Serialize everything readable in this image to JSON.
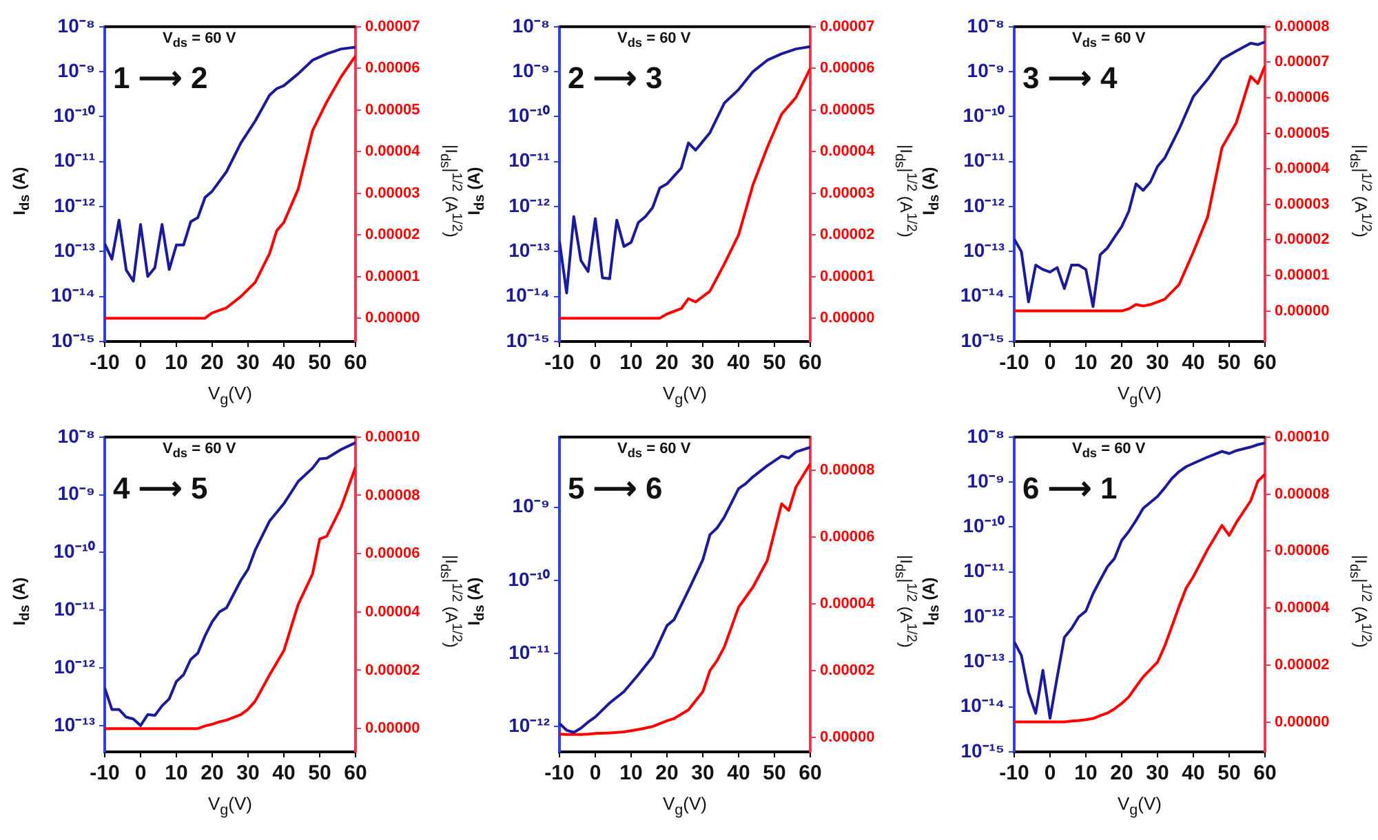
{
  "chart_data": [
    {
      "type": "line",
      "xlabel": "V$_{g}$(V)",
      "ylabel": "I$_{ds}$ (A)",
      "y2label": "|I$_{ds}$|$^{1/2}$ (A$^{1/2}$)",
      "annotations": [
        "V$_{ds}$ = 60 V",
        "1 ⟶ 2"
      ],
      "log": "y",
      "marker": "none",
      "line_style": "solid",
      "x": [
        -10,
        -8,
        -6,
        -4,
        -2,
        0,
        2,
        4,
        6,
        8,
        10,
        12,
        14,
        16,
        18,
        20,
        24,
        28,
        32,
        36,
        38,
        40,
        44,
        48,
        52,
        56,
        60
      ],
      "series": [
        {
          "color": "#1a1a9c",
          "values": [
            1.5e-13,
            6.8e-14,
            5e-13,
            3.9e-14,
            2.2e-14,
            4e-13,
            2.8e-14,
            4.4e-14,
            4e-13,
            4e-14,
            1.4e-13,
            1.4e-13,
            4.6e-13,
            5.7e-13,
            1.6e-12,
            2.2e-12,
            6e-12,
            2.6e-11,
            8e-11,
            3e-10,
            4.2e-10,
            4.9e-10,
            9e-10,
            1.8e-09,
            2.5e-09,
            3.2e-09,
            3.5e-09
          ]
        },
        {
          "color": "#ff0000",
          "axis": "y2",
          "values": [
            0,
            0,
            0,
            0,
            0,
            0,
            0,
            0,
            0,
            0,
            0,
            0,
            0,
            0,
            0,
            1.3e-06,
            2.5e-06,
            5.2e-06,
            8.6e-06,
            1.55e-05,
            2.1e-05,
            2.3e-05,
            3.1e-05,
            4.5e-05,
            5.2e-05,
            5.8e-05,
            6.3e-05
          ]
        }
      ],
      "xlim": [
        -10,
        60
      ],
      "xticks": [
        -10,
        0,
        10,
        20,
        30,
        40,
        50,
        60
      ],
      "ylim": [
        1e-15,
        1e-08
      ],
      "yticks": [
        {
          "value": 1e-15,
          "label": "10⁻¹⁵"
        },
        {
          "value": 1e-14,
          "label": "10⁻¹⁴"
        },
        {
          "value": 1e-13,
          "label": "10⁻¹³"
        },
        {
          "value": 1e-12,
          "label": "10⁻¹²"
        },
        {
          "value": 1e-11,
          "label": "10⁻¹¹"
        },
        {
          "value": 1e-10,
          "label": "10⁻¹⁰"
        },
        {
          "value": 1e-09,
          "label": "10⁻⁹"
        },
        {
          "value": 1e-08,
          "label": "10⁻⁸"
        }
      ],
      "y2lim": [
        -5.6e-06,
        7e-05
      ],
      "y2ticks": [
        {
          "value": 0,
          "label": "0.00000"
        },
        {
          "value": 1e-05,
          "label": "0.00001"
        },
        {
          "value": 2e-05,
          "label": "0.00002"
        },
        {
          "value": 3e-05,
          "label": "0.00003"
        },
        {
          "value": 4e-05,
          "label": "0.00004"
        },
        {
          "value": 5e-05,
          "label": "0.00005"
        },
        {
          "value": 6e-05,
          "label": "0.00006"
        },
        {
          "value": 7e-05,
          "label": "0.00007"
        }
      ]
    },
    {
      "type": "line",
      "xlabel": "V$_{g}$(V)",
      "ylabel": "I$_{ds}$ (A)",
      "y2label": "|I$_{ds}$|$^{1/2}$ (A$^{1/2}$)",
      "annotations": [
        "V$_{ds}$ = 60 V",
        "2 ⟶ 3"
      ],
      "log": "y",
      "marker": "none",
      "line_style": "solid",
      "x": [
        -10,
        -8,
        -6,
        -4,
        -2,
        0,
        2,
        4,
        6,
        8,
        10,
        12,
        14,
        16,
        18,
        20,
        24,
        26,
        28,
        32,
        36,
        40,
        44,
        48,
        52,
        56,
        60
      ],
      "series": [
        {
          "color": "#1a1a9c",
          "values": [
            1.7e-13,
            1.2e-14,
            6e-13,
            6.3e-14,
            3.6e-14,
            5.4e-13,
            2.6e-14,
            2.5e-14,
            5e-13,
            1.3e-13,
            1.6e-13,
            4.4e-13,
            6e-13,
            9.5e-13,
            2.6e-12,
            3.2e-12,
            7.2e-12,
            2.6e-11,
            1.8e-11,
            4.4e-11,
            2e-10,
            4e-10,
            1e-09,
            1.8e-09,
            2.5e-09,
            3.2e-09,
            3.6e-09
          ]
        },
        {
          "color": "#ff0000",
          "axis": "y2",
          "values": [
            0,
            0,
            0,
            0,
            0,
            0,
            0,
            0,
            0,
            0,
            0,
            0,
            0,
            0,
            0,
            1e-06,
            2.3e-06,
            4.7e-06,
            3.9e-06,
            6.5e-06,
            1.3e-05,
            2e-05,
            3.2e-05,
            4.1e-05,
            4.9e-05,
            5.3e-05,
            6e-05
          ]
        }
      ],
      "xlim": [
        -10,
        60
      ],
      "xticks": [
        -10,
        0,
        10,
        20,
        30,
        40,
        50,
        60
      ],
      "ylim": [
        1e-15,
        1e-08
      ],
      "yticks": [
        {
          "value": 1e-15,
          "label": "10⁻¹⁵"
        },
        {
          "value": 1e-14,
          "label": "10⁻¹⁴"
        },
        {
          "value": 1e-13,
          "label": "10⁻¹³"
        },
        {
          "value": 1e-12,
          "label": "10⁻¹²"
        },
        {
          "value": 1e-11,
          "label": "10⁻¹¹"
        },
        {
          "value": 1e-10,
          "label": "10⁻¹⁰"
        },
        {
          "value": 1e-09,
          "label": "10⁻⁹"
        },
        {
          "value": 1e-08,
          "label": "10⁻⁸"
        }
      ],
      "y2lim": [
        -5.6e-06,
        7e-05
      ],
      "y2ticks": [
        {
          "value": 0,
          "label": "0.00000"
        },
        {
          "value": 1e-05,
          "label": "0.00001"
        },
        {
          "value": 2e-05,
          "label": "0.00002"
        },
        {
          "value": 3e-05,
          "label": "0.00003"
        },
        {
          "value": 4e-05,
          "label": "0.00004"
        },
        {
          "value": 5e-05,
          "label": "0.00005"
        },
        {
          "value": 6e-05,
          "label": "0.00006"
        },
        {
          "value": 7e-05,
          "label": "0.00007"
        }
      ]
    },
    {
      "type": "line",
      "xlabel": "V$_{g}$(V)",
      "ylabel": "I$_{ds}$ (A)",
      "y2label": "|I$_{ds}$|$^{1/2}$ (A$^{1/2}$)",
      "annotations": [
        "V$_{ds}$ = 60 V",
        "3 ⟶ 4"
      ],
      "log": "y",
      "marker": "none",
      "line_style": "solid",
      "x": [
        -10,
        -8,
        -6,
        -4,
        -2,
        0,
        2,
        4,
        6,
        8,
        10,
        12,
        14,
        16,
        18,
        20,
        22,
        24,
        26,
        28,
        30,
        32,
        36,
        40,
        44,
        48,
        52,
        56,
        58,
        60
      ],
      "series": [
        {
          "color": "#1a1a9c",
          "values": [
            1.9e-13,
            1e-13,
            7.6e-15,
            5e-14,
            4e-14,
            3.5e-14,
            4.4e-14,
            1.5e-14,
            5e-14,
            5e-14,
            4e-14,
            6e-15,
            8.5e-14,
            1.2e-13,
            2.1e-13,
            3.6e-13,
            7.9e-13,
            3.2e-12,
            2.3e-12,
            3.5e-12,
            7.8e-12,
            1.2e-11,
            5.2e-11,
            2.8e-10,
            6.8e-10,
            1.9e-09,
            2.9e-09,
            4.3e-09,
            4e-09,
            4.6e-09
          ]
        },
        {
          "color": "#ff0000",
          "axis": "y2",
          "values": [
            0,
            0,
            0,
            0,
            0,
            0,
            0,
            0,
            0,
            0,
            0,
            0,
            0,
            0,
            0,
            0,
            6e-07,
            1.8e-06,
            1.4e-06,
            1.8e-06,
            2.5e-06,
            3.3e-06,
            7.4e-06,
            1.66e-05,
            2.65e-05,
            4.6e-05,
            5.3e-05,
            6.6e-05,
            6.4e-05,
            6.9e-05
          ]
        }
      ],
      "xlim": [
        -10,
        60
      ],
      "xticks": [
        -10,
        0,
        10,
        20,
        30,
        40,
        50,
        60
      ],
      "ylim": [
        1e-15,
        1e-08
      ],
      "yticks": [
        {
          "value": 1e-15,
          "label": "10⁻¹⁵"
        },
        {
          "value": 1e-14,
          "label": "10⁻¹⁴"
        },
        {
          "value": 1e-13,
          "label": "10⁻¹³"
        },
        {
          "value": 1e-12,
          "label": "10⁻¹²"
        },
        {
          "value": 1e-11,
          "label": "10⁻¹¹"
        },
        {
          "value": 1e-10,
          "label": "10⁻¹⁰"
        },
        {
          "value": 1e-09,
          "label": "10⁻⁹"
        },
        {
          "value": 1e-08,
          "label": "10⁻⁸"
        }
      ],
      "y2lim": [
        -8.6e-06,
        8e-05
      ],
      "y2ticks": [
        {
          "value": 0,
          "label": "0.00000"
        },
        {
          "value": 1e-05,
          "label": "0.00001"
        },
        {
          "value": 2e-05,
          "label": "0.00002"
        },
        {
          "value": 3e-05,
          "label": "0.00003"
        },
        {
          "value": 4e-05,
          "label": "0.00004"
        },
        {
          "value": 5e-05,
          "label": "0.00005"
        },
        {
          "value": 6e-05,
          "label": "0.00006"
        },
        {
          "value": 7e-05,
          "label": "0.00007"
        },
        {
          "value": 8e-05,
          "label": "0.00008"
        }
      ]
    },
    {
      "type": "line",
      "xlabel": "V$_{g}$(V)",
      "ylabel": "I$_{ds}$ (A)",
      "y2label": "|I$_{ds}$|$^{1/2}$ (A$^{1/2}$)",
      "annotations": [
        "V$_{ds}$ = 60 V",
        "4 ⟶ 5"
      ],
      "log": "y",
      "marker": "none",
      "line_style": "solid",
      "x": [
        -10,
        -8,
        -6,
        -4,
        -2,
        0,
        2,
        4,
        6,
        8,
        10,
        12,
        14,
        16,
        18,
        20,
        22,
        24,
        28,
        30,
        32,
        36,
        40,
        44,
        48,
        50,
        52,
        56,
        60
      ],
      "series": [
        {
          "color": "#1a1a9c",
          "values": [
            4.5e-13,
            1.9e-13,
            1.9e-13,
            1.4e-13,
            1.3e-13,
            1e-13,
            1.55e-13,
            1.5e-13,
            2.2e-13,
            2.9e-13,
            5.8e-13,
            7.6e-13,
            1.4e-12,
            1.8e-12,
            3.6e-12,
            6.3e-12,
            9.3e-12,
            1.1e-11,
            3.3e-11,
            5.1e-11,
            1.1e-10,
            3.5e-10,
            7e-10,
            1.7e-09,
            2.9e-09,
            4.2e-09,
            4.3e-09,
            6.1e-09,
            8e-09
          ]
        },
        {
          "color": "#ff0000",
          "axis": "y2",
          "values": [
            0,
            0,
            0,
            0,
            0,
            0,
            0,
            0,
            0,
            0,
            0,
            0,
            0,
            0,
            9e-07,
            1.5e-06,
            2.3e-06,
            2.9e-06,
            4.8e-06,
            6.6e-06,
            9.4e-06,
            1.84e-05,
            2.67e-05,
            4.26e-05,
            5.3e-05,
            6.5e-05,
            6.6e-05,
            7.6e-05,
            8.97e-05
          ]
        }
      ],
      "xlim": [
        -10,
        60
      ],
      "xticks": [
        -10,
        0,
        10,
        20,
        30,
        40,
        50,
        60
      ],
      "ylim": [
        3.5e-14,
        1e-08
      ],
      "yticks": [
        {
          "value": 1e-13,
          "label": "10⁻¹³"
        },
        {
          "value": 1e-12,
          "label": "10⁻¹²"
        },
        {
          "value": 1e-11,
          "label": "10⁻¹¹"
        },
        {
          "value": 1e-10,
          "label": "10⁻¹⁰"
        },
        {
          "value": 1e-09,
          "label": "10⁻⁹"
        },
        {
          "value": 1e-08,
          "label": "10⁻⁸"
        }
      ],
      "y2lim": [
        -8e-06,
        0.0001
      ],
      "y2ticks": [
        {
          "value": 0,
          "label": "0.00000"
        },
        {
          "value": 2e-05,
          "label": "0.00002"
        },
        {
          "value": 4e-05,
          "label": "0.00004"
        },
        {
          "value": 6e-05,
          "label": "0.00006"
        },
        {
          "value": 8e-05,
          "label": "0.00008"
        },
        {
          "value": 0.0001,
          "label": "0.00010"
        }
      ]
    },
    {
      "type": "line",
      "xlabel": "V$_{g}$(V)",
      "ylabel": "I$_{ds}$ (A)",
      "y2label": "|I$_{ds}$|$^{1/2}$ (A$^{1/2}$)",
      "annotations": [
        "V$_{ds}$ = 60 V",
        "5 ⟶ 6"
      ],
      "log": "y",
      "marker": "none",
      "line_style": "solid",
      "x": [
        -10,
        -8,
        -6,
        -4,
        -2,
        0,
        4,
        8,
        12,
        16,
        20,
        22,
        26,
        30,
        32,
        34,
        36,
        40,
        42,
        44,
        48,
        52,
        54,
        56,
        60
      ],
      "series": [
        {
          "color": "#1a1a9c",
          "values": [
            1.1e-12,
            8.9e-13,
            8.3e-13,
            9.5e-13,
            1.15e-12,
            1.35e-12,
            2.1e-12,
            3e-12,
            5.1e-12,
            9e-12,
            2.4e-11,
            2.9e-11,
            7.3e-11,
            1.9e-10,
            4.2e-10,
            5.2e-10,
            7.3e-10,
            1.8e-09,
            2.1e-09,
            2.6e-09,
            3.7e-09,
            5e-09,
            4.7e-09,
            5.7e-09,
            6.6e-09
          ]
        },
        {
          "color": "#ff0000",
          "axis": "y2",
          "values": [
            9e-07,
            8e-07,
            8e-07,
            8e-07,
            9e-07,
            1.1e-06,
            1.3e-06,
            1.6e-06,
            2.3e-06,
            3.2e-06,
            4.9e-06,
            5.6e-06,
            8.2e-06,
            1.36e-05,
            2e-05,
            2.3e-05,
            2.7e-05,
            3.9e-05,
            4.2e-05,
            4.5e-05,
            5.3e-05,
            7e-05,
            6.8e-05,
            7.5e-05,
            8.2e-05
          ]
        }
      ],
      "xlim": [
        -10,
        60
      ],
      "xticks": [
        -10,
        0,
        10,
        20,
        30,
        40,
        50,
        60
      ],
      "ylim": [
        4.5e-13,
        9.1e-09
      ],
      "yticks": [
        {
          "value": 1e-12,
          "label": "10⁻¹²"
        },
        {
          "value": 1e-11,
          "label": "10⁻¹¹"
        },
        {
          "value": 1e-10,
          "label": "10⁻¹⁰"
        },
        {
          "value": 1e-09,
          "label": "10⁻⁹"
        }
      ],
      "y2lim": [
        -4.4e-06,
        9e-05
      ],
      "y2ticks": [
        {
          "value": 0,
          "label": "0.00000"
        },
        {
          "value": 2e-05,
          "label": "0.00002"
        },
        {
          "value": 4e-05,
          "label": "0.00004"
        },
        {
          "value": 6e-05,
          "label": "0.00006"
        },
        {
          "value": 8e-05,
          "label": "0.00008"
        }
      ]
    },
    {
      "type": "line",
      "xlabel": "V$_{g}$(V)",
      "ylabel": "I$_{ds}$ (A)",
      "y2label": "|I$_{ds}$|$^{1/2}$ (A$^{1/2}$)",
      "annotations": [
        "V$_{ds}$ = 60 V",
        "6 ⟶ 1"
      ],
      "log": "y",
      "marker": "none",
      "line_style": "solid",
      "x": [
        -10,
        -8,
        -6,
        -4,
        -2,
        0,
        2,
        4,
        6,
        8,
        10,
        12,
        14,
        16,
        18,
        20,
        22,
        24,
        26,
        30,
        32,
        34,
        36,
        38,
        40,
        44,
        48,
        50,
        52,
        56,
        58,
        60
      ],
      "series": [
        {
          "color": "#1a1a9c",
          "values": [
            2.8e-13,
            1.4e-13,
            2.1e-14,
            7.2e-15,
            6.5e-14,
            5.6e-15,
            4.6e-14,
            3.5e-13,
            5.5e-13,
            1e-12,
            1.35e-12,
            3.3e-12,
            6.6e-12,
            1.3e-11,
            2e-11,
            5e-11,
            8e-11,
            1.4e-10,
            2.6e-10,
            4.8e-10,
            7.4e-10,
            1.2e-09,
            1.7e-09,
            2.2e-09,
            2.6e-09,
            3.6e-09,
            4.8e-09,
            4.3e-09,
            5e-09,
            6e-09,
            6.8e-09,
            7.4e-09
          ]
        },
        {
          "color": "#ff0000",
          "axis": "y2",
          "values": [
            0,
            0,
            0,
            0,
            0,
            0,
            0,
            0,
            3e-07,
            5e-07,
            8e-07,
            1.2e-06,
            2.2e-06,
            3.1e-06,
            4.6e-06,
            6.5e-06,
            8.8e-06,
            1.24e-05,
            1.58e-05,
            2.1e-05,
            2.66e-05,
            3.35e-05,
            4.05e-05,
            4.7e-05,
            5.1e-05,
            6.06e-05,
            6.9e-05,
            6.55e-05,
            7e-05,
            7.76e-05,
            8.45e-05,
            8.7e-05
          ]
        }
      ],
      "xlim": [
        -10,
        60
      ],
      "xticks": [
        -10,
        0,
        10,
        20,
        30,
        40,
        50,
        60
      ],
      "ylim": [
        1e-15,
        1e-08
      ],
      "yticks": [
        {
          "value": 1e-15,
          "label": "10⁻¹⁵"
        },
        {
          "value": 1e-14,
          "label": "10⁻¹⁴"
        },
        {
          "value": 1e-13,
          "label": "10⁻¹³"
        },
        {
          "value": 1e-12,
          "label": "10⁻¹²"
        },
        {
          "value": 1e-11,
          "label": "10⁻¹¹"
        },
        {
          "value": 1e-10,
          "label": "10⁻¹⁰"
        },
        {
          "value": 1e-09,
          "label": "10⁻⁹"
        },
        {
          "value": 1e-08,
          "label": "10⁻⁸"
        }
      ],
      "y2lim": [
        -1.05e-05,
        0.0001
      ],
      "y2ticks": [
        {
          "value": 0,
          "label": "0.00000"
        },
        {
          "value": 2e-05,
          "label": "0.00002"
        },
        {
          "value": 4e-05,
          "label": "0.00004"
        },
        {
          "value": 6e-05,
          "label": "0.00006"
        },
        {
          "value": 8e-05,
          "label": "0.00008"
        },
        {
          "value": 0.0001,
          "label": "0.00010"
        }
      ]
    }
  ]
}
